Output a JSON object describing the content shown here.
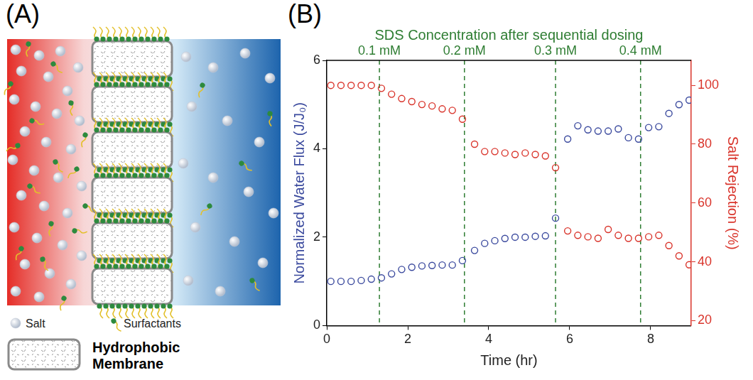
{
  "figure": {
    "panel_labels": [
      "(A)",
      "(B)"
    ]
  },
  "diagram": {
    "legend_items": [
      "Salt",
      "Surfactants"
    ],
    "membrane_label": "Hydrophobic Membrane"
  },
  "chart_data": {
    "type": "scatter",
    "title": "SDS Concentration after sequential dosing",
    "x_label": "Time (hr)",
    "y_label": "Normalized Water Flux (J/J₀)",
    "y2_label": "Salt Rejection (%)",
    "xlim": [
      0,
      9
    ],
    "xticks": [
      0,
      2,
      4,
      6,
      8
    ],
    "ylim": [
      0,
      6
    ],
    "yticks": [
      0,
      2,
      4,
      6
    ],
    "y2lim": [
      18.3,
      108.5
    ],
    "y2ticks": [
      20,
      40,
      60,
      80,
      100
    ],
    "grid": false,
    "annotations": [
      {
        "x": 1.3,
        "label": "0.1 mM",
        "line_style": "dashed"
      },
      {
        "x": 3.4,
        "label": "0.2 mM",
        "line_style": "dashed"
      },
      {
        "x": 5.65,
        "label": "0.3 mM",
        "line_style": "dashed"
      },
      {
        "x": 7.75,
        "label": "0.4 mM",
        "line_style": "dashed"
      }
    ],
    "annotation_color": "#2e7d32",
    "x": [
      0.1,
      0.35,
      0.6,
      0.85,
      1.1,
      1.35,
      1.6,
      1.85,
      2.1,
      2.35,
      2.6,
      2.85,
      3.1,
      3.35,
      3.65,
      3.9,
      4.15,
      4.4,
      4.65,
      4.9,
      5.15,
      5.4,
      5.65,
      5.95,
      6.2,
      6.45,
      6.7,
      6.95,
      7.2,
      7.45,
      7.7,
      7.95,
      8.2,
      8.45,
      8.7,
      8.95
    ],
    "series": [
      {
        "color": "#3b4a9e",
        "marker": "open_circle",
        "axis": "y",
        "values": [
          1.0,
          1.0,
          1.0,
          1.02,
          1.05,
          1.08,
          1.17,
          1.27,
          1.32,
          1.35,
          1.36,
          1.37,
          1.37,
          1.47,
          1.7,
          1.86,
          1.92,
          1.97,
          2.0,
          2.0,
          2.02,
          2.03,
          2.43,
          4.22,
          4.52,
          4.43,
          4.4,
          4.4,
          4.45,
          4.25,
          4.22,
          4.48,
          4.5,
          4.8,
          5.0,
          5.1
        ]
      },
      {
        "color": "#d9342b",
        "marker": "open_circle",
        "axis": "y2",
        "values": [
          100,
          100,
          100,
          100,
          100,
          99,
          97,
          95.5,
          94.5,
          93.5,
          93,
          92,
          91.5,
          88.5,
          80,
          77.5,
          77.5,
          77,
          76.5,
          77,
          76.5,
          76,
          72,
          50.5,
          49,
          48.5,
          48,
          51,
          49,
          48,
          48,
          48.5,
          49,
          45.5,
          42,
          39
        ]
      }
    ]
  }
}
